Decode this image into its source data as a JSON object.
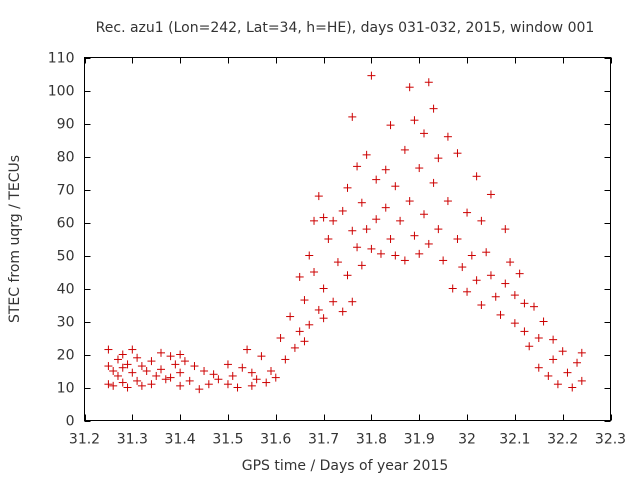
{
  "chart_data": {
    "type": "scatter",
    "title": "Rec. azu1 (Lon=242, Lat=34, h=HE), days 031-032, 2015, window 001",
    "xlabel": "GPS time / Days of year 2015",
    "ylabel": "STEC from uqrg / TECUs",
    "xlim": [
      31.2,
      32.3
    ],
    "ylim": [
      0,
      110
    ],
    "xticks": [
      "31.2",
      "31.3",
      "31.4",
      "31.5",
      "31.6",
      "31.7",
      "31.8",
      "31.9",
      "32",
      "32.1",
      "32.2",
      "32.3"
    ],
    "yticks": [
      "0",
      "10",
      "20",
      "30",
      "40",
      "50",
      "60",
      "70",
      "80",
      "90",
      "100",
      "110"
    ],
    "marker": "+",
    "color": "#cc0000",
    "grid": false,
    "series": [
      {
        "name": "STEC",
        "points": [
          [
            31.25,
            21.5
          ],
          [
            31.25,
            16.5
          ],
          [
            31.25,
            11.0
          ],
          [
            31.26,
            15.0
          ],
          [
            31.26,
            10.5
          ],
          [
            31.27,
            18.5
          ],
          [
            31.27,
            13.5
          ],
          [
            31.28,
            20.0
          ],
          [
            31.28,
            16.0
          ],
          [
            31.28,
            11.5
          ],
          [
            31.29,
            17.0
          ],
          [
            31.29,
            10.0
          ],
          [
            31.3,
            21.5
          ],
          [
            31.3,
            14.5
          ],
          [
            31.31,
            19.0
          ],
          [
            31.31,
            12.0
          ],
          [
            31.32,
            16.5
          ],
          [
            31.32,
            10.5
          ],
          [
            31.33,
            15.0
          ],
          [
            31.34,
            18.0
          ],
          [
            31.34,
            11.0
          ],
          [
            31.35,
            13.5
          ],
          [
            31.36,
            20.5
          ],
          [
            31.36,
            15.5
          ],
          [
            31.37,
            12.5
          ],
          [
            31.38,
            19.5
          ],
          [
            31.38,
            13.0
          ],
          [
            31.39,
            17.0
          ],
          [
            31.4,
            20.0
          ],
          [
            31.4,
            14.5
          ],
          [
            31.4,
            10.5
          ],
          [
            31.41,
            18.0
          ],
          [
            31.42,
            12.0
          ],
          [
            31.43,
            16.5
          ],
          [
            31.44,
            9.5
          ],
          [
            31.45,
            15.0
          ],
          [
            31.46,
            11.0
          ],
          [
            31.47,
            14.0
          ],
          [
            31.48,
            12.5
          ],
          [
            31.5,
            17.0
          ],
          [
            31.5,
            11.0
          ],
          [
            31.51,
            13.5
          ],
          [
            31.52,
            10.0
          ],
          [
            31.53,
            16.0
          ],
          [
            31.54,
            21.5
          ],
          [
            31.55,
            14.5
          ],
          [
            31.55,
            10.5
          ],
          [
            31.56,
            12.5
          ],
          [
            31.57,
            19.5
          ],
          [
            31.58,
            11.5
          ],
          [
            31.59,
            15.0
          ],
          [
            31.6,
            13.0
          ],
          [
            31.61,
            25.0
          ],
          [
            31.62,
            18.5
          ],
          [
            31.63,
            31.5
          ],
          [
            31.64,
            22.0
          ],
          [
            31.65,
            43.5
          ],
          [
            31.65,
            27.0
          ],
          [
            31.66,
            36.5
          ],
          [
            31.66,
            24.0
          ],
          [
            31.67,
            50.0
          ],
          [
            31.67,
            29.0
          ],
          [
            31.68,
            60.5
          ],
          [
            31.68,
            45.0
          ],
          [
            31.69,
            68.0
          ],
          [
            31.69,
            33.5
          ],
          [
            31.7,
            61.5
          ],
          [
            31.7,
            40.0
          ],
          [
            31.7,
            31.0
          ],
          [
            31.71,
            55.0
          ],
          [
            31.72,
            60.5
          ],
          [
            31.72,
            36.0
          ],
          [
            31.73,
            48.0
          ],
          [
            31.74,
            63.5
          ],
          [
            31.74,
            33.0
          ],
          [
            31.75,
            70.5
          ],
          [
            31.75,
            44.0
          ],
          [
            31.76,
            57.5
          ],
          [
            31.76,
            92.0
          ],
          [
            31.76,
            36.0
          ],
          [
            31.77,
            77.0
          ],
          [
            31.77,
            52.5
          ],
          [
            31.78,
            66.0
          ],
          [
            31.78,
            47.0
          ],
          [
            31.79,
            80.5
          ],
          [
            31.79,
            58.0
          ],
          [
            31.8,
            104.5
          ],
          [
            31.8,
            52.0
          ],
          [
            31.81,
            73.0
          ],
          [
            31.81,
            61.0
          ],
          [
            31.82,
            50.5
          ],
          [
            31.83,
            64.5
          ],
          [
            31.83,
            76.0
          ],
          [
            31.84,
            55.0
          ],
          [
            31.84,
            89.5
          ],
          [
            31.85,
            71.0
          ],
          [
            31.85,
            50.0
          ],
          [
            31.86,
            60.5
          ],
          [
            31.87,
            82.0
          ],
          [
            31.87,
            48.5
          ],
          [
            31.88,
            101.0
          ],
          [
            31.88,
            66.5
          ],
          [
            31.89,
            56.0
          ],
          [
            31.89,
            91.0
          ],
          [
            31.9,
            76.5
          ],
          [
            31.9,
            50.5
          ],
          [
            31.91,
            87.0
          ],
          [
            31.91,
            62.5
          ],
          [
            31.92,
            102.5
          ],
          [
            31.92,
            53.5
          ],
          [
            31.93,
            94.5
          ],
          [
            31.93,
            72.0
          ],
          [
            31.94,
            58.0
          ],
          [
            31.94,
            79.5
          ],
          [
            31.95,
            48.5
          ],
          [
            31.96,
            86.0
          ],
          [
            31.96,
            66.5
          ],
          [
            31.97,
            40.0
          ],
          [
            31.98,
            81.0
          ],
          [
            31.98,
            55.0
          ],
          [
            31.99,
            46.5
          ],
          [
            32.0,
            63.0
          ],
          [
            32.0,
            39.0
          ],
          [
            32.01,
            50.0
          ],
          [
            32.02,
            74.0
          ],
          [
            32.02,
            42.5
          ],
          [
            32.03,
            60.5
          ],
          [
            32.03,
            35.0
          ],
          [
            32.04,
            51.0
          ],
          [
            32.05,
            68.5
          ],
          [
            32.05,
            44.0
          ],
          [
            32.06,
            37.5
          ],
          [
            32.07,
            32.0
          ],
          [
            32.08,
            58.0
          ],
          [
            32.08,
            41.5
          ],
          [
            32.09,
            48.0
          ],
          [
            32.1,
            29.5
          ],
          [
            32.1,
            38.0
          ],
          [
            32.11,
            44.5
          ],
          [
            32.12,
            27.0
          ],
          [
            32.12,
            35.5
          ],
          [
            32.13,
            22.5
          ],
          [
            32.14,
            34.5
          ],
          [
            32.15,
            25.0
          ],
          [
            32.15,
            16.0
          ],
          [
            32.16,
            30.0
          ],
          [
            32.17,
            13.5
          ],
          [
            32.18,
            24.5
          ],
          [
            32.18,
            18.5
          ],
          [
            32.19,
            11.0
          ],
          [
            32.2,
            21.0
          ],
          [
            32.21,
            14.5
          ],
          [
            32.22,
            10.0
          ],
          [
            32.23,
            17.5
          ],
          [
            32.24,
            20.5
          ],
          [
            32.24,
            12.0
          ]
        ]
      }
    ]
  }
}
